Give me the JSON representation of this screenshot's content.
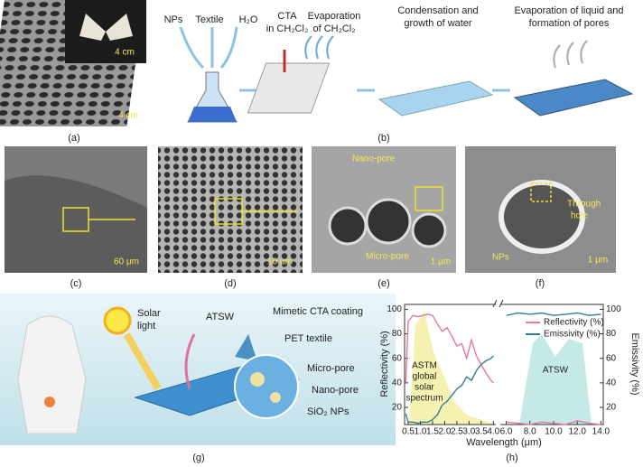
{
  "panels": [
    {
      "label": "(a)",
      "texts": [
        "4 cm",
        "4 cm"
      ]
    },
    {
      "label": "(b)",
      "texts": [
        "NPs",
        "Textile",
        "H₂O",
        "CTA",
        "in CH₂Cl₂",
        "Evaporation",
        "of CH₂Cl₂",
        "Condensation and",
        "growth of water",
        "Evaporation of liquid and",
        "formation of pores"
      ]
    },
    {
      "label": "(c)",
      "texts": [
        "60 μm"
      ]
    },
    {
      "label": "(d)",
      "texts": [
        "10 μm"
      ]
    },
    {
      "label": "(e)",
      "texts": [
        "Nano-pore",
        "Micro-pore",
        "1 μm"
      ]
    },
    {
      "label": "(f)",
      "texts": [
        "Through",
        "hole",
        "NPs",
        "1 μm"
      ]
    },
    {
      "label": "(g)",
      "texts": [
        "Solar",
        "light",
        "ATSW",
        "Mimetic CTA coating",
        "PET textile",
        "Micro-pore",
        "Nano-pore",
        "SiO₂ NPs"
      ]
    },
    {
      "label": "(h)"
    }
  ],
  "chart_data": {
    "type": "line",
    "x_label": "Wavelength (μm)",
    "y_label": "Reflectivity (%)",
    "y2_label": "Emissivity (%)",
    "x": [
      0.4,
      0.5,
      0.7,
      0.9,
      1.1,
      1.3,
      1.5,
      1.7,
      1.9,
      2.1,
      2.3,
      2.5,
      2.7,
      2.9,
      3.1,
      3.3,
      3.5,
      3.7,
      3.9,
      4.0,
      5.0,
      6,
      7,
      8,
      9,
      10,
      11,
      12,
      13,
      14
    ],
    "series": [
      {
        "name": "Reflectivity (%)",
        "color": "#e07a9e",
        "values": [
          40,
          90,
          95,
          94,
          95,
          96,
          95,
          88,
          82,
          85,
          78,
          70,
          72,
          60,
          75,
          62,
          55,
          48,
          42,
          40,
          null,
          8,
          7,
          6,
          8,
          7,
          6,
          9,
          7,
          6
        ]
      },
      {
        "name": "Emissivity (%)",
        "color": "#2f7f98",
        "axis": "y2",
        "values": [
          15,
          8,
          8,
          7,
          8,
          8,
          10,
          14,
          22,
          25,
          30,
          35,
          38,
          45,
          42,
          50,
          55,
          58,
          60,
          62,
          null,
          95,
          97,
          96,
          97,
          95,
          96,
          97,
          95,
          96
        ]
      }
    ],
    "annotations": [
      "ASTM",
      "global",
      "solar",
      "spectrum",
      "ATSW"
    ],
    "xlim": [
      0.35,
      14.2
    ],
    "x_break": [
      4.1,
      5.5
    ],
    "xticks": [
      0.5,
      {
        "value": 1,
        "label": "1.0"
      },
      1.5,
      {
        "value": 2,
        "label": "2.0"
      },
      2.5,
      {
        "value": 3,
        "label": "3.0"
      },
      3.5,
      {
        "value": 4,
        "label": "4.0"
      },
      {
        "value": 6,
        "label": "6.0"
      },
      {
        "value": 8,
        "label": "8.0"
      },
      {
        "value": 10,
        "label": "10.0"
      },
      {
        "value": 12,
        "label": "12.0"
      },
      {
        "value": 14,
        "label": "14.0"
      }
    ],
    "ylim": [
      6,
      104
    ],
    "yticks": [
      20,
      40,
      60,
      80,
      100
    ],
    "y2lim": [
      6,
      104
    ],
    "y2ticks": [
      20,
      40,
      60,
      80,
      100
    ],
    "legend": "upper-right"
  }
}
